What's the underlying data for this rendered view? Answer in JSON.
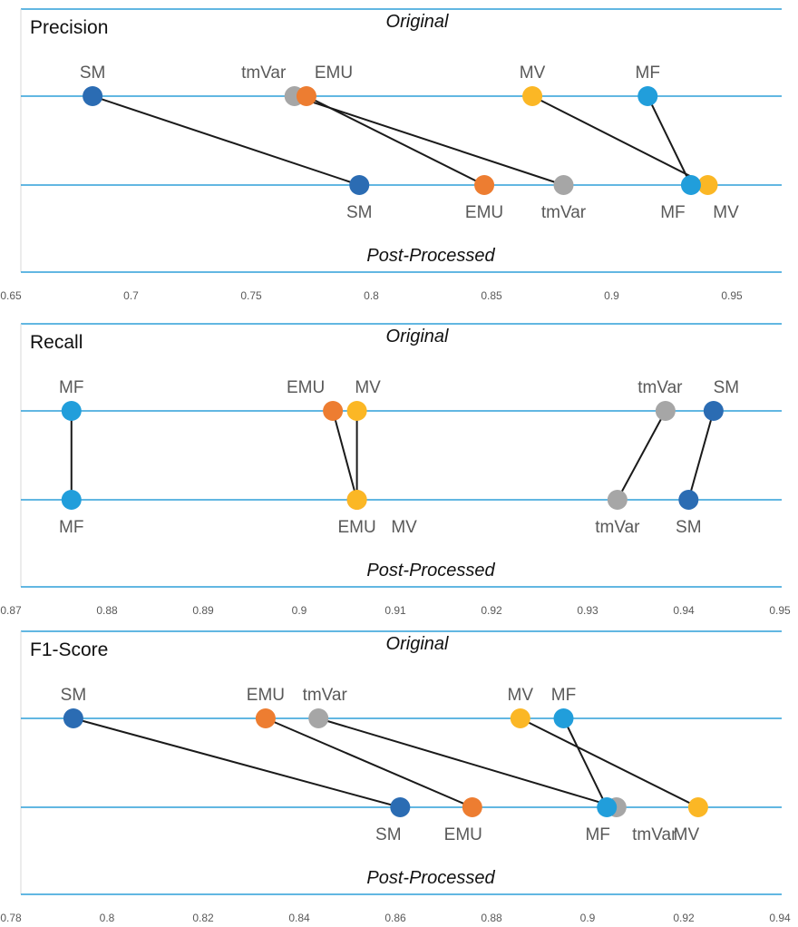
{
  "row_labels": {
    "top": "Original",
    "bottom": "Post-Processed"
  },
  "colors": {
    "axis": "#2E9FD9",
    "connector": "#1a1a1a",
    "SM": "#2B6CB3",
    "tmVar": "#A6A6A6",
    "EMU": "#ED7D31",
    "MV": "#FBB725",
    "MF": "#219EDB"
  },
  "chart_data": [
    {
      "type": "scatter",
      "title": "Precision",
      "xlim": [
        0.65,
        0.97
      ],
      "ticks": [
        "0.65",
        "0.7",
        "0.75",
        "0.8",
        "0.85",
        "0.9",
        "0.95"
      ],
      "series": [
        {
          "name": "SM",
          "original": 0.684,
          "post_processed": 0.795
        },
        {
          "name": "tmVar",
          "original": 0.768,
          "post_processed": 0.88
        },
        {
          "name": "EMU",
          "original": 0.773,
          "post_processed": 0.847
        },
        {
          "name": "MV",
          "original": 0.867,
          "post_processed": 0.94
        },
        {
          "name": "MF",
          "original": 0.915,
          "post_processed": 0.933
        }
      ]
    },
    {
      "type": "scatter",
      "title": "Recall",
      "xlim": [
        0.87,
        0.95
      ],
      "ticks": [
        "0.87",
        "0.88",
        "0.89",
        "0.9",
        "0.91",
        "0.92",
        "0.93",
        "0.94",
        "0.95"
      ],
      "series": [
        {
          "name": "MF",
          "original": 0.8763,
          "post_processed": 0.8763
        },
        {
          "name": "EMU",
          "original": 0.9035,
          "post_processed": 0.906
        },
        {
          "name": "MV",
          "original": 0.906,
          "post_processed": 0.906
        },
        {
          "name": "tmVar",
          "original": 0.9381,
          "post_processed": 0.9331
        },
        {
          "name": "SM",
          "original": 0.9431,
          "post_processed": 0.9405
        }
      ]
    },
    {
      "type": "scatter",
      "title": "F1-Score",
      "xlim": [
        0.78,
        0.94
      ],
      "ticks": [
        "0.78",
        "0.8",
        "0.82",
        "0.84",
        "0.86",
        "0.88",
        "0.9",
        "0.92",
        "0.94"
      ],
      "series": [
        {
          "name": "SM",
          "original": 0.793,
          "post_processed": 0.861
        },
        {
          "name": "EMU",
          "original": 0.833,
          "post_processed": 0.876
        },
        {
          "name": "tmVar",
          "original": 0.844,
          "post_processed": 0.906
        },
        {
          "name": "MV",
          "original": 0.886,
          "post_processed": 0.923
        },
        {
          "name": "MF",
          "original": 0.895,
          "post_processed": 0.904
        }
      ]
    }
  ]
}
